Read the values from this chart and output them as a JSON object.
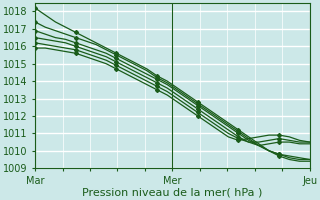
{
  "title": "",
  "xlabel": "Pression niveau de la mer( hPa )",
  "ylabel": "",
  "xlim": [
    0,
    48
  ],
  "ylim": [
    1009,
    1018.5
  ],
  "yticks": [
    1009,
    1010,
    1011,
    1012,
    1013,
    1014,
    1015,
    1016,
    1017,
    1018
  ],
  "xtick_positions": [
    0,
    24,
    48
  ],
  "xtick_labels": [
    "Mar",
    "Mer",
    "Jeu"
  ],
  "bg_color": "#cce8e8",
  "grid_color": "#ffffff",
  "grid_minor_color": "#ddf0f0",
  "line_color": "#1a5c1a",
  "lines": [
    [
      1018.2,
      1017.8,
      1017.4,
      1017.1,
      1016.8,
      1016.5,
      1016.2,
      1015.9,
      1015.6,
      1015.3,
      1015.0,
      1014.7,
      1014.3,
      1014.0,
      1013.6,
      1013.2,
      1012.8,
      1012.4,
      1012.0,
      1011.6,
      1011.2,
      1010.8,
      1010.4,
      1010.0,
      1009.7,
      1009.5,
      1009.4,
      1009.4
    ],
    [
      1017.4,
      1017.1,
      1016.9,
      1016.7,
      1016.5,
      1016.3,
      1016.1,
      1015.8,
      1015.5,
      1015.2,
      1014.9,
      1014.6,
      1014.2,
      1013.9,
      1013.5,
      1013.1,
      1012.7,
      1012.3,
      1011.9,
      1011.5,
      1011.1,
      1010.7,
      1010.3,
      1010.0,
      1009.8,
      1009.6,
      1009.5,
      1009.5
    ],
    [
      1016.9,
      1016.7,
      1016.5,
      1016.4,
      1016.2,
      1016.0,
      1015.8,
      1015.6,
      1015.3,
      1015.0,
      1014.7,
      1014.4,
      1014.1,
      1013.8,
      1013.4,
      1013.0,
      1012.6,
      1012.2,
      1011.8,
      1011.4,
      1011.0,
      1010.6,
      1010.3,
      1010.0,
      1009.8,
      1009.7,
      1009.6,
      1009.5
    ],
    [
      1016.5,
      1016.4,
      1016.3,
      1016.2,
      1016.0,
      1015.8,
      1015.6,
      1015.4,
      1015.1,
      1014.8,
      1014.5,
      1014.2,
      1013.9,
      1013.6,
      1013.2,
      1012.8,
      1012.4,
      1012.0,
      1011.6,
      1011.2,
      1010.8,
      1010.5,
      1010.3,
      1010.4,
      1010.5,
      1010.5,
      1010.4,
      1010.4
    ],
    [
      1016.2,
      1016.1,
      1016.0,
      1015.9,
      1015.8,
      1015.6,
      1015.4,
      1015.2,
      1014.9,
      1014.6,
      1014.3,
      1014.0,
      1013.7,
      1013.4,
      1013.0,
      1012.6,
      1012.2,
      1011.8,
      1011.4,
      1011.0,
      1010.7,
      1010.5,
      1010.5,
      1010.6,
      1010.7,
      1010.6,
      1010.5,
      1010.5
    ],
    [
      1015.9,
      1015.9,
      1015.8,
      1015.7,
      1015.6,
      1015.4,
      1015.2,
      1015.0,
      1014.7,
      1014.4,
      1014.1,
      1013.8,
      1013.5,
      1013.2,
      1012.8,
      1012.4,
      1012.0,
      1011.6,
      1011.2,
      1010.8,
      1010.6,
      1010.7,
      1010.8,
      1010.9,
      1010.9,
      1010.8,
      1010.6,
      1010.5
    ]
  ],
  "marker_style": "D",
  "marker_size": 2.0,
  "line_width": 0.9,
  "tick_fontsize": 7,
  "xlabel_fontsize": 8
}
